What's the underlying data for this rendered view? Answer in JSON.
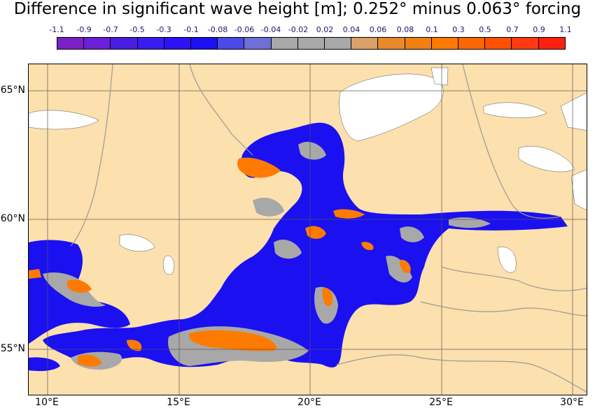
{
  "title": "Difference in significant wave height [m]; 0.252° minus 0.063° forcing",
  "colorbar": {
    "ticks": [
      "-1.1",
      "-0.9",
      "-0.7",
      "-0.5",
      "-0.3",
      "-0.1",
      "-0.08",
      "-0.06",
      "-0.04",
      "-0.02",
      "0.02",
      "0.04",
      "0.06",
      "0.08",
      "0.1",
      "0.3",
      "0.5",
      "0.7",
      "0.9",
      "1.1"
    ],
    "colors": [
      "#7b1fc8",
      "#6a1fd8",
      "#4a1ee0",
      "#3a1cf0",
      "#2c12f5",
      "#1a10f0",
      "#4a4ae8",
      "#6f6fd8",
      "#a8a8a8",
      "#a8a8a8",
      "#a8a8a8",
      "#d9a06a",
      "#e88a2a",
      "#f08010",
      "#ff7a00",
      "#ff6600",
      "#ff5000",
      "#ff3a10",
      "#ff2010"
    ]
  },
  "axes": {
    "lat_labels": [
      "65°N",
      "60°N",
      "55°N"
    ],
    "lon_labels": [
      "10°E",
      "15°E",
      "20°E",
      "25°E",
      "30°E"
    ]
  },
  "colors": {
    "land": "#fce0ad",
    "sea_negative": "#1a10f0",
    "sea_neutral": "#a8a8a8",
    "sea_positive": "#ff7a00",
    "ice_or_nodata": "#ffffff"
  }
}
